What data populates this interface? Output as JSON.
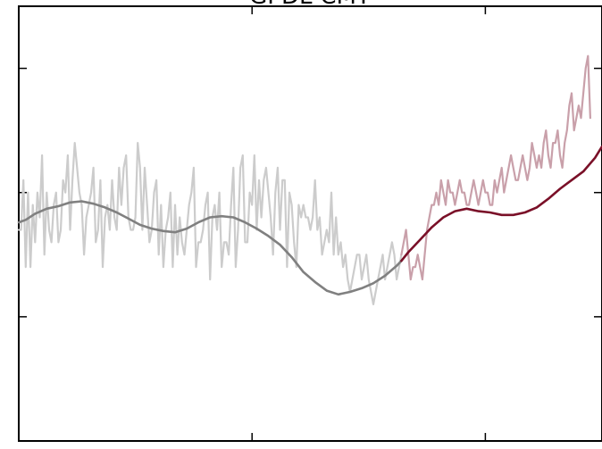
{
  "chart_data": {
    "type": "line",
    "title": "GPDL-CMT",
    "xlabel": "",
    "ylabel": "",
    "xlim": [
      0,
      250
    ],
    "ylim": [
      0,
      3.5
    ],
    "x_ticks": [
      100,
      200
    ],
    "y_ticks": [
      1,
      2,
      3
    ],
    "tick_labels_visible": false,
    "grid": false,
    "legend": "none",
    "split_x": 164,
    "colors": {
      "raw_before": "#cccccc",
      "raw_after": "#c9a0aa",
      "smooth_before": "#808080",
      "smooth_after": "#7a1028",
      "axes": "#000000"
    },
    "series": [
      {
        "role": "raw",
        "x_start": 0,
        "x_step": 1,
        "values": [
          1.7,
          1.7,
          2.1,
          1.4,
          2.0,
          1.4,
          1.9,
          1.6,
          2.0,
          1.8,
          2.3,
          1.5,
          2.0,
          1.7,
          1.6,
          1.9,
          2.0,
          1.6,
          1.7,
          2.1,
          2.0,
          2.3,
          1.7,
          2.1,
          2.4,
          2.2,
          2.0,
          1.9,
          1.5,
          1.8,
          1.9,
          2.0,
          2.2,
          1.6,
          1.7,
          2.1,
          1.4,
          1.8,
          1.9,
          1.7,
          2.1,
          1.8,
          1.7,
          2.2,
          1.9,
          2.2,
          2.3,
          1.8,
          1.7,
          1.7,
          1.8,
          2.4,
          2.2,
          1.7,
          2.2,
          1.9,
          1.6,
          1.7,
          2.0,
          2.1,
          1.5,
          1.9,
          1.4,
          1.7,
          1.8,
          2.0,
          1.4,
          1.9,
          1.5,
          1.8,
          1.6,
          1.5,
          1.7,
          1.9,
          2.0,
          2.2,
          1.4,
          1.6,
          1.6,
          1.7,
          1.9,
          2.0,
          1.3,
          1.8,
          1.9,
          1.7,
          2.0,
          1.4,
          1.6,
          1.6,
          1.5,
          1.9,
          2.2,
          1.4,
          1.7,
          2.2,
          2.3,
          1.6,
          1.6,
          2.0,
          1.9,
          2.3,
          1.7,
          2.1,
          1.8,
          2.1,
          2.2,
          2.0,
          1.8,
          1.5,
          2.0,
          2.2,
          1.7,
          2.1,
          2.1,
          1.4,
          2.0,
          1.9,
          1.6,
          1.4,
          1.9,
          1.8,
          1.9,
          1.8,
          1.8,
          1.7,
          1.8,
          2.1,
          1.7,
          1.8,
          1.5,
          1.6,
          1.7,
          1.6,
          2.0,
          1.5,
          1.8,
          1.5,
          1.6,
          1.4,
          1.5,
          1.3,
          1.2,
          1.3,
          1.4,
          1.5,
          1.5,
          1.3,
          1.4,
          1.5,
          1.3,
          1.2,
          1.1,
          1.2,
          1.3,
          1.4,
          1.5,
          1.3,
          1.4,
          1.5,
          1.6,
          1.5,
          1.3,
          1.4,
          1.5,
          1.6,
          1.7,
          1.5,
          1.3,
          1.4,
          1.4,
          1.5,
          1.4,
          1.3,
          1.5,
          1.7,
          1.8,
          1.9,
          1.9,
          2.0,
          1.9,
          2.1,
          2.0,
          1.9,
          2.1,
          2.0,
          2.0,
          1.9,
          2.0,
          2.1,
          2.0,
          2.0,
          1.9,
          1.9,
          2.0,
          2.1,
          2.0,
          1.9,
          2.0,
          2.1,
          2.0,
          2.0,
          1.9,
          1.9,
          2.1,
          2.0,
          2.1,
          2.2,
          2.0,
          2.1,
          2.2,
          2.3,
          2.2,
          2.1,
          2.1,
          2.2,
          2.3,
          2.2,
          2.1,
          2.2,
          2.4,
          2.3,
          2.2,
          2.3,
          2.2,
          2.4,
          2.5,
          2.3,
          2.2,
          2.4,
          2.4,
          2.5,
          2.3,
          2.2,
          2.4,
          2.5,
          2.7,
          2.8,
          2.5,
          2.6,
          2.7,
          2.6,
          2.8,
          3.0,
          3.1,
          2.6
        ]
      },
      {
        "role": "smoothed",
        "x": [
          0,
          3,
          7,
          12,
          17,
          22,
          27,
          32,
          37,
          42,
          47,
          52,
          57,
          62,
          67,
          72,
          77,
          82,
          87,
          92,
          97,
          102,
          107,
          112,
          117,
          122,
          127,
          132,
          137,
          142,
          147,
          152,
          157,
          162,
          164,
          167,
          172,
          177,
          182,
          187,
          192,
          197,
          202,
          207,
          212,
          217,
          222,
          227,
          232,
          237,
          242,
          247,
          250
        ],
        "values": [
          1.76,
          1.78,
          1.83,
          1.87,
          1.89,
          1.92,
          1.93,
          1.91,
          1.88,
          1.84,
          1.79,
          1.74,
          1.71,
          1.69,
          1.68,
          1.71,
          1.76,
          1.8,
          1.81,
          1.8,
          1.76,
          1.71,
          1.65,
          1.58,
          1.48,
          1.36,
          1.28,
          1.21,
          1.18,
          1.2,
          1.23,
          1.27,
          1.33,
          1.41,
          1.45,
          1.52,
          1.62,
          1.72,
          1.8,
          1.85,
          1.87,
          1.85,
          1.84,
          1.82,
          1.82,
          1.84,
          1.88,
          1.95,
          2.03,
          2.1,
          2.17,
          2.28,
          2.37
        ]
      }
    ]
  }
}
